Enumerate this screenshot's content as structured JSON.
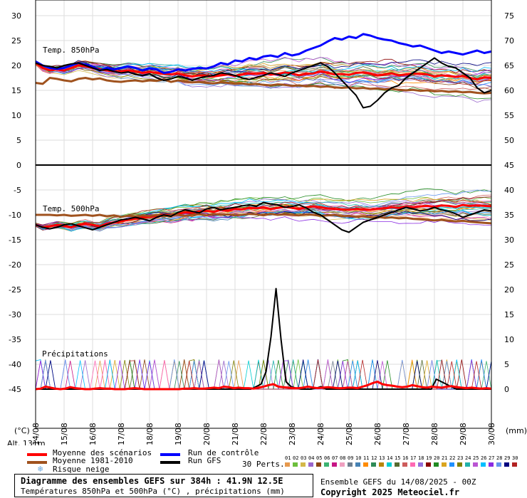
{
  "chart_data": {
    "type": "line",
    "left_axis_ticks": [
      "30",
      "25",
      "20",
      "15",
      "10",
      "5",
      "0",
      "-5",
      "-10",
      "-15",
      "-20",
      "-25",
      "-30",
      "-35",
      "-40",
      "-45"
    ],
    "right_axis_ticks": [
      "75",
      "70",
      "65",
      "60",
      "55",
      "50",
      "45",
      "40",
      "35",
      "30",
      "25",
      "20",
      "15",
      "10",
      "5",
      "0"
    ],
    "left_unit": "(°C)",
    "right_unit": "(mm)",
    "date_labels": [
      "14/08",
      "15/08",
      "16/08",
      "17/08",
      "18/08",
      "19/08",
      "20/08",
      "21/08",
      "22/08",
      "23/08",
      "24/08",
      "25/08",
      "26/08",
      "27/08",
      "28/08",
      "29/08",
      "30/08"
    ],
    "panel_labels": {
      "t850": "Temp. 850hPa",
      "t500": "Temp. 500hPa",
      "precip": "Précipitations"
    },
    "altitude_label": "Alt. 131m",
    "series": [
      {
        "name": "Moyenne des scénarios",
        "panel": "t850",
        "color": "#ff0000",
        "values": [
          20.5,
          19.5,
          19,
          19.2,
          19,
          19.5,
          20,
          19.8,
          19.5,
          19.2,
          19,
          18.8,
          18.8,
          19,
          18.8,
          18.5,
          18.7,
          18.5,
          18.3,
          18.2,
          18.4,
          18,
          17.8,
          18,
          17.9,
          17.8,
          18,
          18.2,
          17.9,
          18.2,
          18.4,
          18.3,
          18.5,
          18.2,
          18.3,
          18.6,
          18.4,
          18,
          18.3,
          18.4,
          18.8,
          18.5,
          18.2,
          18.3,
          18.1,
          18.5,
          18.6,
          18.4,
          18,
          18.2,
          18.4,
          18,
          18.2,
          18.4,
          18.3,
          18.2,
          17.8,
          18,
          17.9,
          17.7,
          17.9,
          17.5,
          17.2,
          17.6,
          17.5
        ]
      },
      {
        "name": "Run de contrôle",
        "panel": "t850",
        "color": "#0000ff",
        "values": [
          20.8,
          20,
          19.5,
          19.3,
          19.5,
          20,
          20.5,
          20.2,
          19.8,
          19,
          19.5,
          19.2,
          19.5,
          19.8,
          19.5,
          19,
          19.4,
          19.2,
          18.5,
          18.7,
          19.2,
          19,
          19.3,
          19.5,
          19.4,
          19.8,
          20.5,
          20.2,
          21,
          20.8,
          21.5,
          21.2,
          21.8,
          22,
          21.7,
          22.5,
          22,
          22.3,
          23,
          23.5,
          24,
          24.8,
          25.5,
          25.2,
          25.8,
          25.5,
          26.3,
          26,
          25.5,
          25.2,
          25,
          24.5,
          24.2,
          23.8,
          24,
          23.5,
          23,
          22.5,
          22.8,
          22.5,
          22.2,
          22.6,
          23,
          22.5,
          22.8
        ]
      },
      {
        "name": "Moyenne 1981-2010",
        "panel": "t850",
        "color": "#a0521e",
        "values": [
          16.5,
          16.3,
          17.5,
          17.3,
          17,
          16.8,
          17.3,
          17.5,
          17.2,
          17.4,
          17,
          16.8,
          16.7,
          16.9,
          17,
          16.8,
          17,
          16.9,
          17.2,
          16.7,
          17,
          16.8,
          16.6,
          16.7,
          16.5,
          16.4,
          16.6,
          16.5,
          16.3,
          16.4,
          16.2,
          16.3,
          16.1,
          16,
          16.2,
          16.1,
          15.9,
          16,
          15.8,
          15.9,
          15.7,
          15.8,
          15.6,
          15.5,
          15.6,
          15.4,
          15.5,
          15.3,
          15.4,
          15.2,
          15.3,
          15.1,
          15,
          15.1,
          14.9,
          15,
          14.8,
          14.9,
          14.7,
          14.8,
          14.6,
          14.7,
          14.5,
          14.4,
          14.5
        ]
      },
      {
        "name": "Run GFS",
        "panel": "t850",
        "color": "#000000",
        "values": [
          20.5,
          20,
          19.8,
          19.5,
          20,
          20.3,
          20.5,
          20,
          19.5,
          19,
          19.2,
          18.8,
          18.5,
          18.7,
          18.2,
          18,
          18.3,
          17.5,
          17,
          17.3,
          17.8,
          17.5,
          17,
          17.5,
          17.8,
          18,
          18.5,
          18.3,
          18,
          17.5,
          17.2,
          17.6,
          18,
          18.5,
          18.2,
          17.8,
          18.5,
          19,
          19.5,
          20,
          20.5,
          19.8,
          18.5,
          17,
          15.5,
          14,
          11.5,
          11.8,
          13,
          14.5,
          15.5,
          16,
          17.5,
          18.5,
          19.5,
          20.5,
          21.5,
          20.5,
          19.8,
          19.5,
          18.5,
          17.5,
          15.5,
          14.5,
          15
        ]
      },
      {
        "name": "Moyenne des scénarios",
        "panel": "t500",
        "color": "#ff0000",
        "values": [
          -12,
          -12.5,
          -12.3,
          -12,
          -12.2,
          -12.5,
          -12,
          -11.8,
          -12,
          -12.3,
          -11.8,
          -11.5,
          -11.3,
          -11,
          -10.8,
          -10.5,
          -10.4,
          -10.2,
          -10,
          -10.1,
          -9.8,
          -9.5,
          -9.6,
          -9.3,
          -9.2,
          -9.4,
          -9,
          -9.2,
          -8.8,
          -8.9,
          -8.6,
          -8.7,
          -8.5,
          -8.8,
          -8.6,
          -8.4,
          -8.6,
          -8.8,
          -8.5,
          -8.3,
          -8.5,
          -8.7,
          -8.8,
          -8.9,
          -9,
          -8.8,
          -8.9,
          -9,
          -8.8,
          -8.7,
          -8.5,
          -8.6,
          -8.4,
          -8.5,
          -8.3,
          -8.2,
          -8.4,
          -8.1,
          -8.2,
          -8.4,
          -8,
          -8.2,
          -8.1,
          -8.2,
          -8.3
        ]
      },
      {
        "name": "Moyenne 1981-2010",
        "panel": "t500",
        "color": "#a0521e",
        "values": [
          -10,
          -10,
          -10,
          -10.1,
          -10,
          -10.2,
          -10.1,
          -10,
          -10.2,
          -10,
          -10.3,
          -10.1,
          -10.4,
          -10.2,
          -10.3,
          -10.1,
          -10.2,
          -10,
          -10.3,
          -10.1,
          -10,
          -10.2,
          -10,
          -9.9,
          -10.1,
          -9.8,
          -10,
          -9.9,
          -10.1,
          -10,
          -9.8,
          -9.9,
          -10.1,
          -9.8,
          -10,
          -9.9,
          -10,
          -10.1,
          -9.9,
          -10,
          -10.2,
          -10.1,
          -10,
          -10.3,
          -10.2,
          -10.4,
          -10.3,
          -10.5,
          -10.4,
          -10.6,
          -10.5,
          -10.7,
          -10.6,
          -10.8,
          -10.9,
          -11,
          -11.1,
          -11,
          -11.2,
          -11.3,
          -11.2,
          -11.4,
          -11.5,
          -11.6,
          -11.7
        ]
      },
      {
        "name": "Run GFS",
        "panel": "t500",
        "color": "#000000",
        "values": [
          -12,
          -12.5,
          -12.8,
          -12.5,
          -12,
          -11.8,
          -12.2,
          -12.6,
          -13,
          -12.5,
          -12,
          -11.5,
          -11,
          -10.8,
          -10.5,
          -10.8,
          -11.2,
          -10.5,
          -10,
          -10.3,
          -9.5,
          -9,
          -9.3,
          -9.6,
          -8.8,
          -8.5,
          -9,
          -8.7,
          -8.5,
          -8.2,
          -8,
          -8.3,
          -7.5,
          -7.8,
          -8,
          -8.5,
          -8.3,
          -8,
          -8.6,
          -9.5,
          -10,
          -11,
          -12,
          -13,
          -13.5,
          -12.5,
          -11.5,
          -11,
          -10.5,
          -10,
          -9.5,
          -9,
          -8.5,
          -8.8,
          -9.2,
          -9,
          -8.5,
          -9,
          -9.3,
          -9.8,
          -10.5,
          -10,
          -9.5,
          -9,
          -9.2
        ]
      },
      {
        "name": "Run GFS",
        "panel": "precip",
        "color": "#000000",
        "values": [
          0,
          0,
          0,
          0,
          0,
          0,
          0,
          0,
          0,
          0,
          0,
          0,
          0,
          0,
          0,
          0,
          0,
          0,
          0,
          0,
          0,
          0,
          0,
          0,
          0,
          0,
          0,
          0,
          0,
          0,
          0,
          0,
          0,
          0,
          0,
          0,
          0,
          0,
          0,
          0,
          0,
          0,
          0,
          0,
          0.5,
          1,
          3.5,
          10.5,
          20.2,
          10,
          1.5,
          0.5,
          0.2,
          0,
          0,
          0,
          0.2,
          0.5,
          0,
          0,
          0,
          0,
          0,
          0,
          0,
          0,
          0,
          0,
          0,
          0,
          0,
          0,
          0,
          0,
          0,
          0,
          0,
          0,
          0,
          0,
          2,
          1.5,
          1,
          0.5,
          0,
          0,
          0,
          0,
          0,
          0,
          0,
          0
        ]
      },
      {
        "name": "Moyenne des scénarios",
        "panel": "precip",
        "color": "#ff0000",
        "values": [
          0,
          0.1,
          0.5,
          0.3,
          0.1,
          0,
          0.1,
          0.4,
          0.2,
          0.1,
          0,
          0,
          0.1,
          0.2,
          0.1,
          0.1,
          0,
          0,
          0,
          0.1,
          0.2,
          0.1,
          0,
          0,
          0,
          0,
          0,
          0,
          0,
          0,
          0.1,
          0.1,
          0.2,
          0.1,
          0.1,
          0.2,
          0.3,
          0.2,
          0.5,
          0.4,
          0.2,
          0.3,
          0.2,
          0.2,
          0.1,
          0.3,
          0.5,
          0.8,
          1,
          0.5,
          0.4,
          0.3,
          0.2,
          0.2,
          0.3,
          0.5,
          0.3,
          0.2,
          0.3,
          0.4,
          0.3,
          0.2,
          0.2,
          0.3,
          0.3,
          0.2,
          0.5,
          0.8,
          1.2,
          1.5,
          1,
          0.8,
          0.7,
          0.5,
          0.4,
          0.5,
          0.8,
          0.6,
          0.4,
          0.3,
          0.5,
          0.4,
          0.3,
          0.5,
          0.6,
          0.4,
          0.3,
          0.2,
          0.3,
          0.2,
          0.1,
          0.2,
          0.1
        ]
      }
    ]
  },
  "legend": {
    "items": [
      {
        "label": "Moyenne des scénarios",
        "color": "#ff0000"
      },
      {
        "label": "Moyenne 1981-2010",
        "color": "#a0521e"
      },
      {
        "label": "Risque neige",
        "color": "#6aa8e0"
      },
      {
        "label": "Run de contrôle",
        "color": "#0000ff"
      },
      {
        "label": "Run GFS",
        "color": "#000000"
      }
    ],
    "perts_label": "30 Perts.",
    "perts_numbers": [
      "01",
      "02",
      "03",
      "04",
      "05",
      "06",
      "07",
      "08",
      "09",
      "10",
      "11",
      "12",
      "13",
      "14",
      "15",
      "16",
      "17",
      "18",
      "19",
      "20",
      "21",
      "22",
      "23",
      "24",
      "25",
      "26",
      "27",
      "28",
      "29",
      "30"
    ],
    "perts_colors": [
      "#e6994d",
      "#6cbf3c",
      "#d4b84a",
      "#9966cc",
      "#8b4513",
      "#3cb371",
      "#c71585",
      "#f0a0c0",
      "#708090",
      "#4682b4",
      "#ff8c00",
      "#2e8b57",
      "#b8860b",
      "#00ced1",
      "#556b2f",
      "#cd5c5c",
      "#ff69b4",
      "#9370db",
      "#8b0000",
      "#228b22",
      "#daa520",
      "#1e90ff",
      "#808000",
      "#20b2aa",
      "#ba55d3",
      "#00bfff",
      "#8a2be2",
      "#6495ed",
      "#000080",
      "#b22222"
    ]
  },
  "title": {
    "line1": "Diagramme des ensembles GEFS sur 384h : 41.9N 12.5E",
    "line2": "Températures 850hPa et 500hPa (°C) , précipitations (mm)"
  },
  "run_info": "Ensemble GEFS du 14/08/2025 - 00Z",
  "copyright": "Copyright 2025 Meteociel.fr"
}
